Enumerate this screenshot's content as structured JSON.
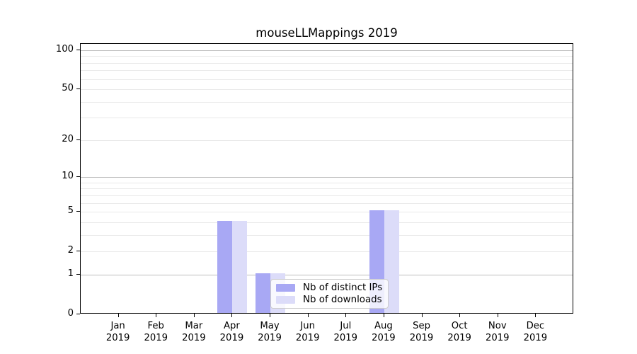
{
  "title": "mouseLLMappings 2019",
  "legend": {
    "items": [
      {
        "label": "Nb of distinct IPs",
        "color": "#a8a8f4"
      },
      {
        "label": "Nb of downloads",
        "color": "#dcdcf9"
      }
    ]
  },
  "y_axis": {
    "scale": "log1p",
    "ticks": [
      {
        "value": 100,
        "label": "100"
      },
      {
        "value": 50,
        "label": "50"
      },
      {
        "value": 20,
        "label": "20"
      },
      {
        "value": 10,
        "label": "10"
      },
      {
        "value": 5,
        "label": "5"
      },
      {
        "value": 2,
        "label": "2"
      },
      {
        "value": 1,
        "label": "1"
      },
      {
        "value": 0,
        "label": "0"
      }
    ],
    "major_gridlines": [
      1,
      10,
      100
    ],
    "minor_gridlines": [
      2,
      3,
      4,
      5,
      6,
      7,
      8,
      9,
      20,
      30,
      40,
      50,
      60,
      70,
      80,
      90
    ]
  },
  "x_axis": {
    "months": [
      {
        "month": "Jan",
        "year": "2019"
      },
      {
        "month": "Feb",
        "year": "2019"
      },
      {
        "month": "Mar",
        "year": "2019"
      },
      {
        "month": "Apr",
        "year": "2019"
      },
      {
        "month": "May",
        "year": "2019"
      },
      {
        "month": "Jun",
        "year": "2019"
      },
      {
        "month": "Jul",
        "year": "2019"
      },
      {
        "month": "Aug",
        "year": "2019"
      },
      {
        "month": "Sep",
        "year": "2019"
      },
      {
        "month": "Oct",
        "year": "2019"
      },
      {
        "month": "Nov",
        "year": "2019"
      },
      {
        "month": "Dec",
        "year": "2019"
      }
    ]
  },
  "chart_data": {
    "type": "bar",
    "title": "mouseLLMappings 2019",
    "categories": [
      "Jan 2019",
      "Feb 2019",
      "Mar 2019",
      "Apr 2019",
      "May 2019",
      "Jun 2019",
      "Jul 2019",
      "Aug 2019",
      "Sep 2019",
      "Oct 2019",
      "Nov 2019",
      "Dec 2019"
    ],
    "series": [
      {
        "name": "Nb of distinct IPs",
        "color": "#a8a8f4",
        "values": [
          0,
          0,
          0,
          4,
          1,
          0,
          0,
          5,
          0,
          0,
          0,
          0
        ]
      },
      {
        "name": "Nb of downloads",
        "color": "#dcdcf9",
        "values": [
          0,
          0,
          0,
          4,
          1,
          0,
          0,
          5,
          0,
          0,
          0,
          0
        ]
      }
    ],
    "yscale": "log1p",
    "yticks": [
      0,
      1,
      2,
      5,
      10,
      20,
      50,
      100
    ],
    "ylim": [
      0,
      112
    ],
    "grid": "horizontal",
    "legend_position": "inside lower center"
  },
  "colors": {
    "bar_distinct_ips": "#a8a8f4",
    "bar_downloads": "#dcdcf9",
    "major_grid": "#bdbdbd",
    "minor_grid": "#e9e9e9",
    "axis": "#000000",
    "background": "#ffffff"
  }
}
